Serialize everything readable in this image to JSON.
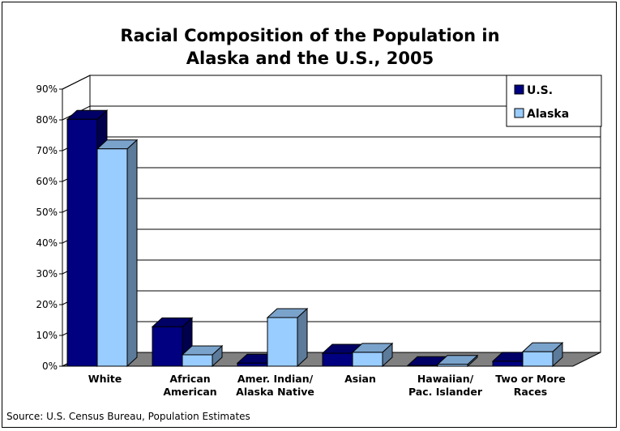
{
  "chart_data": {
    "type": "bar",
    "title_line1": "Racial Composition of the Population in",
    "title_line2": "Alaska and the U.S., 2005",
    "categories": [
      [
        "White"
      ],
      [
        "African",
        "American"
      ],
      [
        "Amer. Indian/",
        "Alaska Native"
      ],
      [
        "Asian"
      ],
      [
        "Hawaiian/",
        "Pac. Islander"
      ],
      [
        "Two or More",
        "Races"
      ]
    ],
    "series": [
      {
        "name": "U.S.",
        "color": "#000080",
        "values": [
          80.2,
          12.8,
          1.0,
          4.2,
          0.2,
          1.6
        ]
      },
      {
        "name": "Alaska",
        "color": "#99CCFF",
        "values": [
          70.6,
          3.7,
          15.8,
          4.5,
          0.6,
          4.7
        ]
      }
    ],
    "ylim": [
      0,
      90
    ],
    "yticks": [
      "0%",
      "10%",
      "20%",
      "30%",
      "40%",
      "50%",
      "60%",
      "70%",
      "80%",
      "90%"
    ],
    "grid": true,
    "legend_position": "top-right",
    "source": "Source: U.S. Census Bureau, Population Estimates"
  }
}
